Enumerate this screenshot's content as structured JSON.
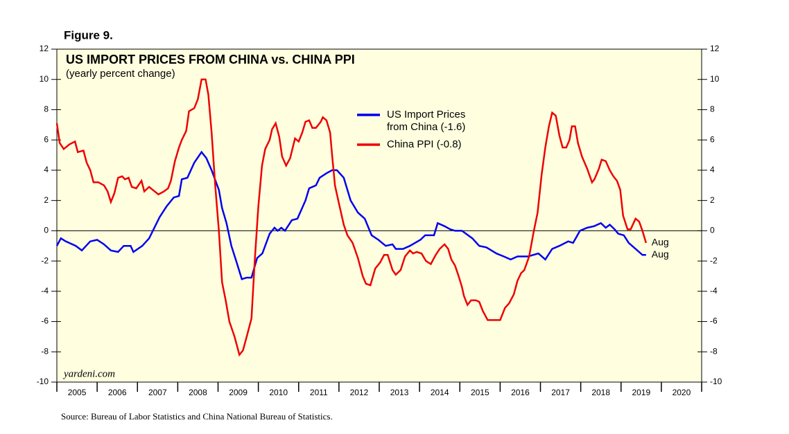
{
  "chart_data": {
    "type": "line",
    "figure_label": "Figure 9.",
    "title": "US IMPORT PRICES FROM CHINA vs. CHINA PPI",
    "subtitle": "(yearly percent change)",
    "watermark": "yardeni.com",
    "source": "Source: Bureau of Labor Statistics and China National Bureau of Statistics.",
    "xlim": [
      2005,
      2021
    ],
    "xticks": [
      2005,
      2006,
      2007,
      2008,
      2009,
      2010,
      2011,
      2012,
      2013,
      2014,
      2015,
      2016,
      2017,
      2018,
      2019,
      2020
    ],
    "ylim": [
      -10,
      12
    ],
    "yticks": [
      -10,
      -8,
      -6,
      -4,
      -2,
      0,
      2,
      4,
      6,
      8,
      10,
      12
    ],
    "zero_line": true,
    "series": [
      {
        "name": "US Import Prices from China (-1.6)",
        "color": "#0000ee",
        "end_label": "Aug",
        "x": [
          2005.0,
          2005.1,
          2005.22,
          2005.47,
          2005.62,
          2005.83,
          2006.0,
          2006.17,
          2006.34,
          2006.52,
          2006.66,
          2006.83,
          2006.9,
          2007.12,
          2007.29,
          2007.55,
          2007.72,
          2007.9,
          2008.03,
          2008.1,
          2008.24,
          2008.41,
          2008.59,
          2008.71,
          2008.84,
          2009.02,
          2009.1,
          2009.21,
          2009.33,
          2009.45,
          2009.59,
          2009.71,
          2009.83,
          2009.97,
          2010.1,
          2010.28,
          2010.4,
          2010.48,
          2010.57,
          2010.66,
          2010.83,
          2010.97,
          2011.17,
          2011.26,
          2011.43,
          2011.52,
          2011.69,
          2011.83,
          2011.95,
          2012.12,
          2012.29,
          2012.47,
          2012.64,
          2012.81,
          2012.98,
          2013.16,
          2013.33,
          2013.41,
          2013.59,
          2013.76,
          2014.02,
          2014.14,
          2014.36,
          2014.45,
          2014.62,
          2014.76,
          2014.88,
          2015.05,
          2015.31,
          2015.48,
          2015.66,
          2015.91,
          2016.09,
          2016.26,
          2016.43,
          2016.69,
          2016.95,
          2017.12,
          2017.29,
          2017.47,
          2017.69,
          2017.81,
          2017.98,
          2018.16,
          2018.33,
          2018.5,
          2018.62,
          2018.72,
          2018.84,
          2018.93,
          2019.07,
          2019.19,
          2019.36,
          2019.53,
          2019.62
        ],
        "values": [
          -1.0,
          -0.5,
          -0.7,
          -1.0,
          -1.3,
          -0.7,
          -0.6,
          -0.9,
          -1.3,
          -1.4,
          -1.0,
          -1.0,
          -1.4,
          -1.0,
          -0.5,
          0.9,
          1.6,
          2.2,
          2.3,
          3.4,
          3.5,
          4.5,
          5.2,
          4.8,
          4.0,
          2.7,
          1.5,
          0.5,
          -1.0,
          -2.0,
          -3.2,
          -3.1,
          -3.1,
          -1.8,
          -1.5,
          -0.2,
          0.2,
          0.0,
          0.2,
          0.0,
          0.7,
          0.8,
          2.0,
          2.8,
          3.0,
          3.5,
          3.8,
          4.0,
          4.0,
          3.5,
          2.0,
          1.2,
          0.8,
          -0.3,
          -0.6,
          -1.0,
          -0.9,
          -1.2,
          -1.2,
          -1.0,
          -0.6,
          -0.3,
          -0.3,
          0.5,
          0.3,
          0.1,
          0.0,
          0.0,
          -0.5,
          -1.0,
          -1.1,
          -1.5,
          -1.7,
          -1.9,
          -1.7,
          -1.7,
          -1.5,
          -1.9,
          -1.2,
          -1.0,
          -0.7,
          -0.8,
          0.0,
          0.2,
          0.3,
          0.5,
          0.2,
          0.4,
          0.1,
          -0.2,
          -0.3,
          -0.8,
          -1.2,
          -1.6,
          -1.6
        ]
      },
      {
        "name": "China PPI (-0.8)",
        "color": "#ee0000",
        "end_label": "Aug",
        "x": [
          2005.0,
          2005.07,
          2005.17,
          2005.31,
          2005.45,
          2005.52,
          2005.66,
          2005.74,
          2005.83,
          2005.91,
          2006.03,
          2006.17,
          2006.26,
          2006.34,
          2006.43,
          2006.52,
          2006.62,
          2006.69,
          2006.78,
          2006.86,
          2006.97,
          2007.1,
          2007.17,
          2007.29,
          2007.38,
          2007.52,
          2007.66,
          2007.76,
          2007.83,
          2007.93,
          2008.03,
          2008.1,
          2008.21,
          2008.28,
          2008.41,
          2008.5,
          2008.59,
          2008.69,
          2008.76,
          2008.84,
          2008.93,
          2009.02,
          2009.1,
          2009.19,
          2009.28,
          2009.41,
          2009.53,
          2009.62,
          2009.71,
          2009.83,
          2009.91,
          2010.0,
          2010.09,
          2010.17,
          2010.28,
          2010.34,
          2010.43,
          2010.52,
          2010.59,
          2010.69,
          2010.79,
          2010.91,
          2011.0,
          2011.09,
          2011.17,
          2011.26,
          2011.34,
          2011.43,
          2011.55,
          2011.6,
          2011.69,
          2011.78,
          2011.83,
          2011.9,
          2012.0,
          2012.12,
          2012.21,
          2012.34,
          2012.47,
          2012.59,
          2012.67,
          2012.78,
          2012.9,
          2013.02,
          2013.12,
          2013.21,
          2013.33,
          2013.41,
          2013.53,
          2013.64,
          2013.76,
          2013.84,
          2013.93,
          2014.05,
          2014.16,
          2014.28,
          2014.4,
          2014.5,
          2014.62,
          2014.71,
          2014.79,
          2014.88,
          2014.97,
          2015.05,
          2015.1,
          2015.19,
          2015.28,
          2015.4,
          2015.48,
          2015.57,
          2015.69,
          2015.86,
          2016.0,
          2016.12,
          2016.22,
          2016.34,
          2016.43,
          2016.52,
          2016.6,
          2016.72,
          2016.83,
          2016.93,
          2017.03,
          2017.12,
          2017.21,
          2017.29,
          2017.38,
          2017.47,
          2017.55,
          2017.64,
          2017.72,
          2017.78,
          2017.86,
          2017.93,
          2018.03,
          2018.16,
          2018.28,
          2018.34,
          2018.45,
          2018.52,
          2018.62,
          2018.72,
          2018.81,
          2018.9,
          2018.98,
          2019.05,
          2019.16,
          2019.24,
          2019.36,
          2019.45,
          2019.53,
          2019.62
        ],
        "values": [
          7.1,
          5.8,
          5.4,
          5.7,
          5.9,
          5.2,
          5.3,
          4.5,
          4.0,
          3.2,
          3.2,
          3.0,
          2.6,
          1.9,
          2.5,
          3.5,
          3.6,
          3.4,
          3.5,
          2.9,
          2.8,
          3.3,
          2.6,
          2.9,
          2.7,
          2.4,
          2.6,
          2.8,
          3.3,
          4.6,
          5.5,
          6.0,
          6.6,
          7.9,
          8.1,
          8.7,
          10.0,
          10.0,
          9.0,
          6.5,
          3.0,
          0.0,
          -3.4,
          -4.6,
          -6.0,
          -7.0,
          -8.2,
          -7.9,
          -7.0,
          -5.8,
          -2.0,
          1.6,
          4.3,
          5.4,
          6.0,
          6.7,
          7.1,
          6.2,
          4.9,
          4.3,
          4.8,
          6.1,
          5.9,
          6.5,
          7.2,
          7.3,
          6.8,
          6.8,
          7.2,
          7.5,
          7.3,
          6.5,
          5.0,
          3.0,
          1.8,
          0.4,
          -0.3,
          -0.8,
          -1.8,
          -3.0,
          -3.5,
          -3.6,
          -2.5,
          -2.1,
          -1.6,
          -1.6,
          -2.6,
          -2.9,
          -2.6,
          -1.7,
          -1.3,
          -1.5,
          -1.4,
          -1.5,
          -2.0,
          -2.2,
          -1.6,
          -1.2,
          -0.9,
          -1.2,
          -1.9,
          -2.3,
          -3.0,
          -3.7,
          -4.3,
          -4.9,
          -4.6,
          -4.6,
          -4.7,
          -5.3,
          -5.9,
          -5.9,
          -5.9,
          -5.1,
          -4.8,
          -4.2,
          -3.3,
          -2.8,
          -2.6,
          -1.7,
          -0.1,
          1.2,
          3.7,
          5.5,
          6.9,
          7.8,
          7.6,
          6.3,
          5.5,
          5.5,
          6.0,
          6.9,
          6.9,
          5.8,
          4.9,
          4.1,
          3.2,
          3.4,
          4.1,
          4.7,
          4.6,
          4.0,
          3.6,
          3.3,
          2.7,
          1.0,
          0.1,
          0.1,
          0.8,
          0.6,
          0.0,
          -0.8
        ]
      }
    ]
  }
}
